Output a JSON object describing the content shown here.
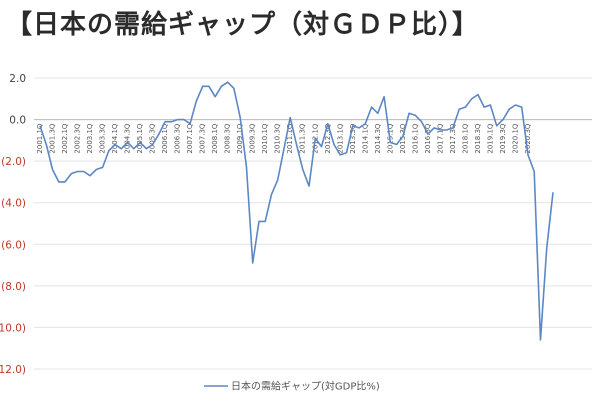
{
  "title": "【日本の需給ギャップ（対ＧＤＰ比）】",
  "chart_data": {
    "type": "line",
    "title": "【日本の需給ギャップ（対ＧＤＰ比）】",
    "ylim": [
      -12,
      2
    ],
    "yticks": [
      2,
      0,
      -2,
      -4,
      -6,
      -8,
      -10,
      -12
    ],
    "ytick_labels": [
      "2.0",
      "0.0",
      "(2.0)",
      "(4.0)",
      "(6.0)",
      "(8.0)",
      "(10.0)",
      "(12.0)"
    ],
    "positive_tick_color": "#444444",
    "negative_tick_color": "#c0392b",
    "line_color": "#5b87c5",
    "grid": true,
    "legend": "bottom",
    "xtick_labels": [
      "2001.1Q",
      "2001.3Q",
      "2002.1Q",
      "2002.3Q",
      "2003.1Q",
      "2003.3Q",
      "2004.1Q",
      "2004.3Q",
      "2005.1Q",
      "2005.3Q",
      "2006.1Q",
      "2006.3Q",
      "2007.1Q",
      "2007.3Q",
      "2008.1Q",
      "2008.3Q",
      "2009.1Q",
      "2009.3Q",
      "2010.1Q",
      "2010.3Q",
      "2011.1Q",
      "2011.3Q",
      "2012.1Q",
      "2012.3Q",
      "2013.1Q",
      "2013.3Q",
      "2014.1Q",
      "2014.3Q",
      "2015.1Q",
      "2015.3Q",
      "2016.1Q",
      "2016.3Q",
      "2017.1Q",
      "2017.3Q",
      "2018.1Q",
      "2018.3Q",
      "2019.1Q",
      "2019.3Q",
      "2020.1Q",
      "2020.3Q"
    ],
    "series": [
      {
        "name": "日本の需給ギャップ(対GDP比%)",
        "values": [
          -0.3,
          -1.2,
          -2.4,
          -3.0,
          -3.0,
          -2.6,
          -2.5,
          -2.5,
          -2.7,
          -2.4,
          -2.3,
          -1.5,
          -1.2,
          -1.4,
          -1.1,
          -1.4,
          -1.1,
          -1.4,
          -1.2,
          -0.7,
          -0.1,
          -0.1,
          0.0,
          0.0,
          -0.2,
          0.9,
          1.6,
          1.6,
          1.1,
          1.6,
          1.8,
          1.5,
          0.1,
          -2.3,
          -6.9,
          -4.9,
          -4.9,
          -3.6,
          -2.9,
          -1.4,
          0.1,
          -1.2,
          -2.4,
          -3.2,
          -0.9,
          -1.3,
          -0.2,
          -1.2,
          -1.7,
          -1.6,
          -0.3,
          -0.4,
          -0.2,
          0.6,
          0.3,
          1.1,
          -1.1,
          -1.2,
          -0.8,
          0.3,
          0.2,
          -0.1,
          -0.7,
          -0.4,
          -0.5,
          -0.5,
          -0.4,
          0.5,
          0.6,
          1.0,
          1.2,
          0.6,
          0.7,
          -0.3,
          0.0,
          0.5,
          0.7,
          0.6,
          -1.7,
          -2.5,
          -10.6,
          -6.2,
          -3.5
        ]
      }
    ]
  }
}
